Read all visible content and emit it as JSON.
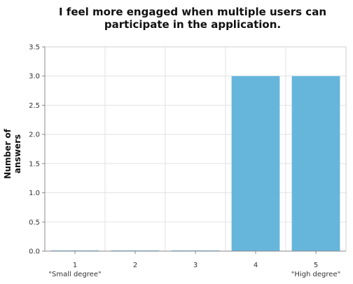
{
  "chart_data": {
    "type": "bar",
    "title": "I feel more engaged when multiple users can participate in the application.",
    "xlabel": "",
    "ylabel": "Number of answers",
    "categories": [
      "1",
      "2",
      "3",
      "4",
      "5"
    ],
    "category_sublabels": [
      "\"Small degree\"",
      "",
      "",
      "",
      "\"High degree\""
    ],
    "values": [
      0,
      0,
      0,
      3,
      3
    ],
    "ylim": [
      0,
      3.5
    ],
    "yticks": [
      "0.0",
      "0.5",
      "1.0",
      "1.5",
      "2.0",
      "2.5",
      "3.0",
      "3.5"
    ],
    "grid": true,
    "legend": "none",
    "bar_color": "#66b6dc"
  }
}
